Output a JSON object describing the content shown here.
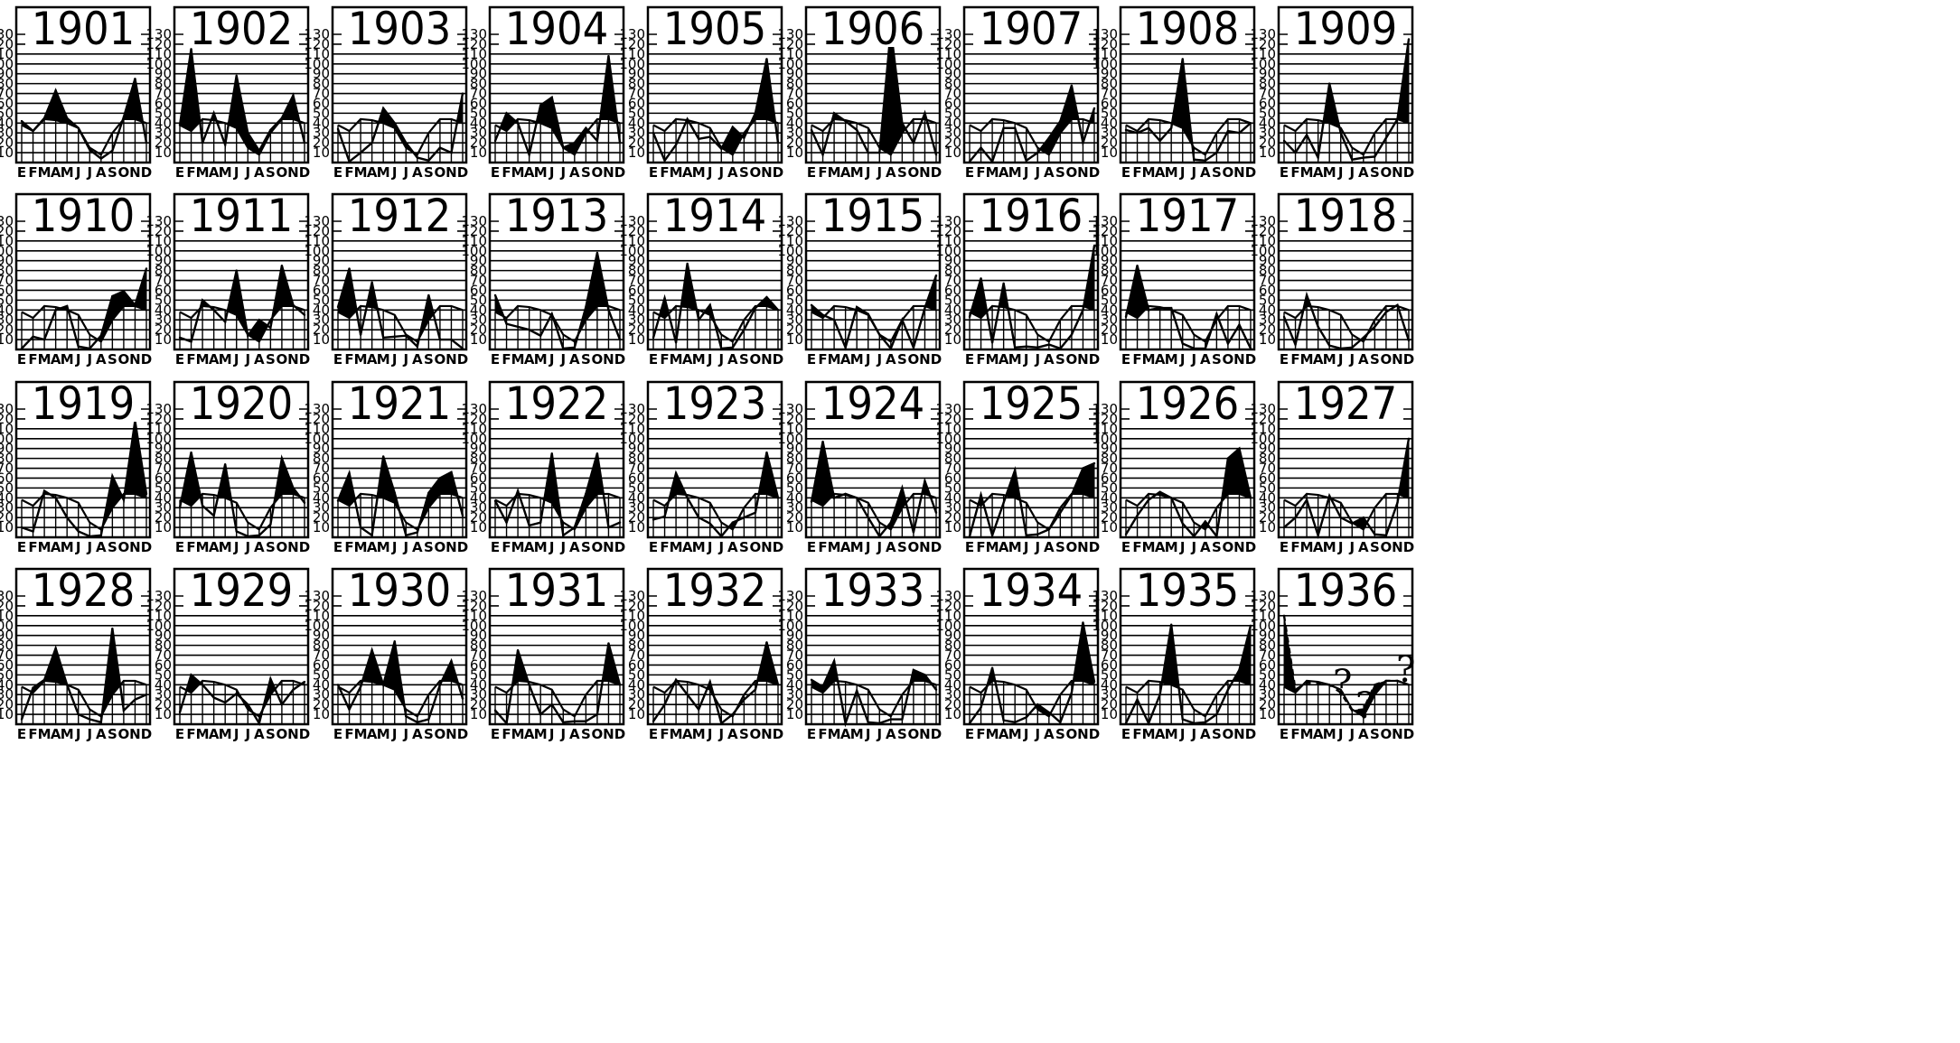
{
  "chart_data": {
    "type": "area",
    "y_ticks": [
      10,
      20,
      30,
      40,
      50,
      60,
      70,
      80,
      90,
      100,
      110,
      120,
      130
    ],
    "x_ticks": [
      "E",
      "F",
      "M",
      "A",
      "M",
      "J",
      "J",
      "A",
      "S",
      "O",
      "N",
      "D"
    ],
    "ylim": [
      0,
      130
    ],
    "grid": "horizontal lines every 10 units; vertical grid below the normal curve",
    "normal_curve": [
      38,
      32,
      44,
      43,
      40,
      35,
      15,
      8,
      30,
      44,
      44,
      40
    ],
    "panels": [
      {
        "year": "1901",
        "values": [
          42,
          32,
          45,
          73,
          45,
          35,
          13,
          4,
          12,
          46,
          85,
          20
        ]
      },
      {
        "year": "1902",
        "values": [
          38,
          115,
          20,
          50,
          18,
          88,
          30,
          12,
          33,
          45,
          68,
          20
        ]
      },
      {
        "year": "1903",
        "values": [
          34,
          1,
          10,
          20,
          55,
          40,
          20,
          5,
          2,
          15,
          10,
          70
        ]
      },
      {
        "year": "1904",
        "values": [
          22,
          50,
          40,
          8,
          58,
          66,
          15,
          20,
          35,
          22,
          108,
          20
        ]
      },
      {
        "year": "1905",
        "values": [
          30,
          2,
          18,
          44,
          24,
          26,
          14,
          36,
          25,
          50,
          105,
          20
        ]
      },
      {
        "year": "1906",
        "values": [
          33,
          8,
          50,
          42,
          33,
          10,
          10,
          135,
          40,
          20,
          50,
          8
        ]
      },
      {
        "year": "1907",
        "values": [
          1,
          15,
          1,
          35,
          35,
          2,
          10,
          25,
          42,
          78,
          20,
          55
        ]
      },
      {
        "year": "1908",
        "values": [
          33,
          30,
          35,
          22,
          35,
          105,
          3,
          2,
          10,
          32,
          30,
          40
        ]
      },
      {
        "year": "1909",
        "values": [
          22,
          10,
          28,
          5,
          80,
          30,
          3,
          5,
          6,
          25,
          44,
          125
        ]
      },
      {
        "year": "1910",
        "values": [
          1,
          13,
          10,
          40,
          44,
          3,
          1,
          14,
          54,
          59,
          45,
          82
        ]
      },
      {
        "year": "1911",
        "values": [
          12,
          8,
          50,
          40,
          28,
          80,
          14,
          30,
          22,
          85,
          45,
          35
        ]
      },
      {
        "year": "1912",
        "values": [
          43,
          82,
          15,
          68,
          12,
          13,
          14,
          3,
          55,
          10,
          10,
          1
        ]
      },
      {
        "year": "1913",
        "values": [
          55,
          26,
          23,
          20,
          14,
          36,
          1,
          2,
          43,
          98,
          40,
          10
        ]
      },
      {
        "year": "1914",
        "values": [
          12,
          52,
          7,
          87,
          30,
          45,
          1,
          2,
          20,
          42,
          53,
          40
        ]
      },
      {
        "year": "1915",
        "values": [
          45,
          35,
          30,
          2,
          43,
          36,
          15,
          1,
          30,
          2,
          42,
          75
        ]
      },
      {
        "year": "1916",
        "values": [
          33,
          72,
          7,
          67,
          2,
          3,
          2,
          5,
          1,
          15,
          40,
          105
        ]
      },
      {
        "year": "1917",
        "values": [
          33,
          85,
          40,
          42,
          42,
          6,
          1,
          1,
          36,
          6,
          25,
          1
        ]
      },
      {
        "year": "1918",
        "values": [
          33,
          5,
          55,
          23,
          4,
          1,
          2,
          12,
          23,
          38,
          45,
          9
        ]
      },
      {
        "year": "1919",
        "values": [
          10,
          6,
          47,
          40,
          20,
          6,
          1,
          2,
          62,
          38,
          118,
          44
        ]
      },
      {
        "year": "1920",
        "values": [
          30,
          86,
          32,
          22,
          74,
          6,
          1,
          2,
          13,
          80,
          50,
          35
        ]
      },
      {
        "year": "1921",
        "values": [
          37,
          65,
          10,
          2,
          82,
          45,
          2,
          5,
          45,
          60,
          66,
          22
        ]
      },
      {
        "year": "1922",
        "values": [
          37,
          15,
          47,
          12,
          15,
          85,
          2,
          10,
          44,
          85,
          10,
          15
        ]
      },
      {
        "year": "1923",
        "values": [
          18,
          21,
          65,
          40,
          20,
          14,
          1,
          15,
          20,
          25,
          86,
          40
        ]
      },
      {
        "year": "1924",
        "values": [
          36,
          97,
          40,
          44,
          40,
          20,
          1,
          15,
          50,
          5,
          57,
          25
        ]
      },
      {
        "year": "1925",
        "values": [
          1,
          43,
          2,
          35,
          68,
          2,
          3,
          8,
          25,
          43,
          70,
          75
        ]
      },
      {
        "year": "1926",
        "values": [
          3,
          22,
          38,
          46,
          40,
          14,
          1,
          16,
          1,
          80,
          90,
          40
        ]
      },
      {
        "year": "1927",
        "values": [
          10,
          20,
          38,
          2,
          42,
          20,
          14,
          20,
          3,
          2,
          35,
          100
        ]
      },
      {
        "year": "1928",
        "values": [
          5,
          37,
          45,
          77,
          40,
          10,
          5,
          2,
          97,
          14,
          25,
          30
        ]
      },
      {
        "year": "1929",
        "values": [
          12,
          50,
          40,
          27,
          22,
          31,
          20,
          1,
          46,
          20,
          35,
          43
        ]
      },
      {
        "year": "1930",
        "values": [
          40,
          15,
          38,
          75,
          40,
          84,
          8,
          2,
          5,
          40,
          64,
          26
        ]
      },
      {
        "year": "1931",
        "values": [
          14,
          1,
          75,
          40,
          10,
          20,
          2,
          3,
          3,
          10,
          82,
          40
        ]
      },
      {
        "year": "1932",
        "values": [
          3,
          20,
          45,
          30,
          15,
          43,
          1,
          10,
          25,
          35,
          83,
          40
        ]
      },
      {
        "year": "1933",
        "values": [
          45,
          38,
          64,
          1,
          34,
          2,
          1,
          5,
          5,
          55,
          50,
          35
        ]
      },
      {
        "year": "1934",
        "values": [
          1,
          17,
          57,
          4,
          2,
          7,
          20,
          12,
          2,
          32,
          103,
          43
        ]
      },
      {
        "year": "1935",
        "values": [
          1,
          25,
          1,
          30,
          101,
          5,
          1,
          2,
          10,
          35,
          55,
          100
        ]
      },
      {
        "year": "1936",
        "values": [
          110,
          35,
          42,
          42,
          40,
          32,
          14,
          15,
          40,
          44,
          44,
          40
        ],
        "annotation": "?",
        "partial": true
      }
    ]
  },
  "question_marks": [
    "?",
    "?",
    "?"
  ]
}
